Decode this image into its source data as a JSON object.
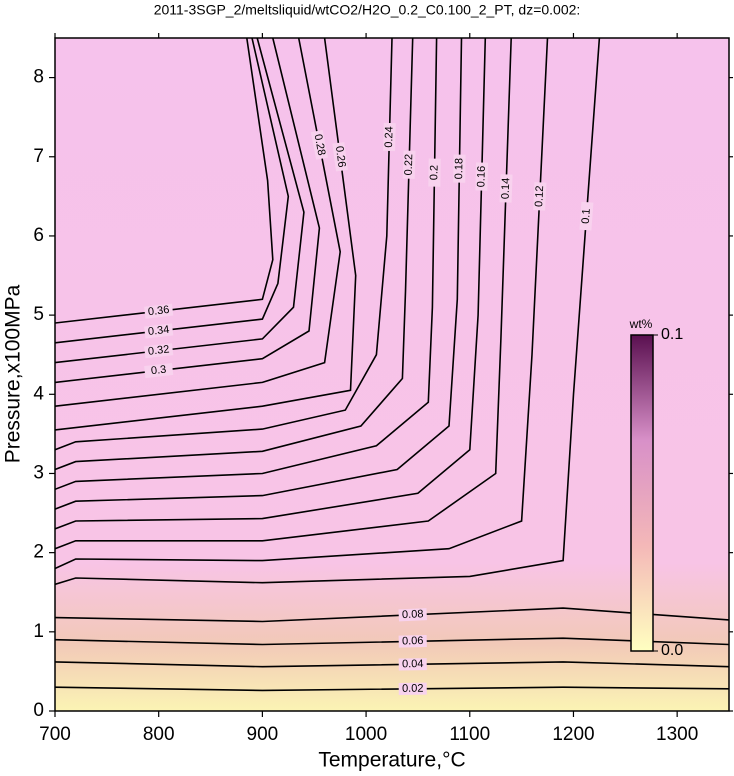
{
  "chart_data": {
    "type": "contour",
    "title": "2011-3SGP_2/meltsliquid/wtCO2/H2O_0.2_C0.100_2_PT, dz=0.002:",
    "x_label": "Temperature,°C",
    "y_label": "Pressure,x100MPa",
    "xlim": [
      700,
      1350
    ],
    "ylim": [
      0,
      8.5
    ],
    "xticks": [
      700,
      800,
      900,
      1000,
      1100,
      1200,
      1300
    ],
    "yticks": [
      0,
      1,
      2,
      3,
      4,
      5,
      6,
      7,
      8
    ],
    "line_color": "#000000",
    "contours": [
      {
        "value": 0.02,
        "x": [
          700,
          900,
          1190,
          1350
        ],
        "y": [
          0.3,
          0.26,
          0.3,
          0.28
        ]
      },
      {
        "value": 0.04,
        "x": [
          700,
          900,
          1190,
          1350
        ],
        "y": [
          0.62,
          0.56,
          0.62,
          0.56
        ]
      },
      {
        "value": 0.06,
        "x": [
          700,
          900,
          1190,
          1350
        ],
        "y": [
          0.9,
          0.84,
          0.92,
          0.84
        ]
      },
      {
        "value": 0.08,
        "x": [
          700,
          900,
          1190,
          1350
        ],
        "y": [
          1.18,
          1.13,
          1.3,
          1.15
        ]
      },
      {
        "value": 0.1,
        "x": [
          700,
          720,
          900,
          1100,
          1190,
          1200,
          1225
        ],
        "y": [
          1.6,
          1.68,
          1.62,
          1.7,
          1.9,
          4.0,
          8.5
        ]
      },
      {
        "value": 0.12,
        "x": [
          700,
          720,
          900,
          1080,
          1150,
          1160,
          1175
        ],
        "y": [
          1.8,
          1.92,
          1.9,
          2.05,
          2.4,
          4.5,
          8.5
        ]
      },
      {
        "value": 0.14,
        "x": [
          700,
          720,
          900,
          1060,
          1125,
          1130,
          1140
        ],
        "y": [
          2.05,
          2.15,
          2.15,
          2.4,
          3.0,
          4.7,
          8.5
        ]
      },
      {
        "value": 0.16,
        "x": [
          700,
          720,
          900,
          1050,
          1100,
          1108,
          1115
        ],
        "y": [
          2.3,
          2.4,
          2.43,
          2.75,
          3.3,
          5.0,
          8.5
        ]
      },
      {
        "value": 0.18,
        "x": [
          700,
          720,
          900,
          1030,
          1080,
          1088,
          1092
        ],
        "y": [
          2.55,
          2.65,
          2.72,
          3.05,
          3.6,
          5.2,
          8.5
        ]
      },
      {
        "value": 0.2,
        "x": [
          700,
          720,
          900,
          1010,
          1060,
          1064,
          1068
        ],
        "y": [
          2.8,
          2.9,
          3.0,
          3.35,
          3.9,
          5.1,
          8.5
        ]
      },
      {
        "value": 0.22,
        "x": [
          700,
          720,
          900,
          995,
          1035,
          1038,
          1045
        ],
        "y": [
          3.05,
          3.15,
          3.28,
          3.6,
          4.2,
          5.3,
          8.5
        ]
      },
      {
        "value": 0.24,
        "x": [
          700,
          720,
          900,
          980,
          1010,
          1020,
          1025
        ],
        "y": [
          3.3,
          3.4,
          3.56,
          3.8,
          4.5,
          6.0,
          8.5
        ]
      },
      {
        "value": 0.26,
        "x": [
          700,
          900,
          985,
          990,
          960
        ],
        "y": [
          3.55,
          3.85,
          4.05,
          5.5,
          8.5
        ]
      },
      {
        "value": 0.28,
        "x": [
          700,
          900,
          960,
          975,
          935
        ],
        "y": [
          3.85,
          4.15,
          4.4,
          5.8,
          8.5
        ]
      },
      {
        "value": 0.3,
        "x": [
          700,
          900,
          945,
          955,
          910
        ],
        "y": [
          4.15,
          4.45,
          4.8,
          6.1,
          8.5
        ]
      },
      {
        "value": 0.32,
        "x": [
          700,
          900,
          930,
          940,
          895
        ],
        "y": [
          4.4,
          4.7,
          5.1,
          6.3,
          8.5
        ]
      },
      {
        "value": 0.34,
        "x": [
          700,
          900,
          915,
          925,
          890
        ],
        "y": [
          4.65,
          4.95,
          5.4,
          6.5,
          8.5
        ]
      },
      {
        "value": 0.36,
        "x": [
          700,
          900,
          910,
          905,
          885
        ],
        "y": [
          4.9,
          5.2,
          5.7,
          6.7,
          8.5
        ]
      }
    ],
    "colorbar": {
      "title": "wt%",
      "lim": [
        0,
        0.1
      ],
      "ticks": [
        {
          "value": 0,
          "label": "0.0"
        },
        0.1
      ],
      "colors": [
        "#ffffc0",
        "#f4b8b8",
        "#d890c8",
        "#5a1050"
      ]
    }
  }
}
